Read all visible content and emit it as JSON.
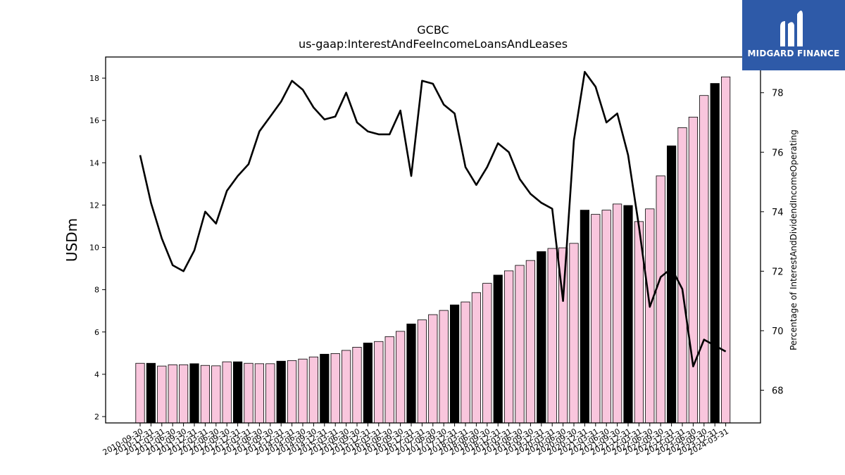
{
  "logo": {
    "text": "MIDGARD FINANCE"
  },
  "chart_data": {
    "type": "bar",
    "title": "GCBC",
    "subtitle": "us-gaap:InterestAndFeeIncomeLoansAndLeases",
    "ylabel": "USDm",
    "y2label": "Percentage of InterestAndDividendIncomeOperating",
    "ylim": [
      1.7,
      19.0
    ],
    "y2lim": [
      66.9,
      79.2
    ],
    "yticks": [
      2,
      4,
      6,
      8,
      10,
      12,
      14,
      16,
      18
    ],
    "y2ticks": [
      68,
      70,
      72,
      74,
      76,
      78
    ],
    "colors": {
      "q4_bar": "#000000",
      "other_bar": "#f9c6dd",
      "line": "#000000",
      "logo_bg": "#2e5aa8"
    },
    "categories": [
      "2010-09-30",
      "2010-12-31",
      "2011-03-31",
      "2011-06-30",
      "2011-09-30",
      "2011-12-31",
      "2012-03-31",
      "2012-06-30",
      "2012-09-30",
      "2012-12-31",
      "2013-03-31",
      "2013-06-30",
      "2013-09-30",
      "2013-12-31",
      "2014-03-31",
      "2014-06-30",
      "2014-09-30",
      "2014-12-31",
      "2015-03-31",
      "2015-06-30",
      "2015-09-30",
      "2015-12-31",
      "2016-03-31",
      "2016-06-30",
      "2016-09-30",
      "2016-12-31",
      "2017-03-31",
      "2017-06-30",
      "2017-09-30",
      "2017-12-31",
      "2018-03-31",
      "2018-06-30",
      "2018-09-30",
      "2018-12-31",
      "2019-03-31",
      "2019-06-30",
      "2019-09-30",
      "2019-12-31",
      "2020-03-31",
      "2020-06-30",
      "2020-09-30",
      "2020-12-31",
      "2021-03-31",
      "2021-06-30",
      "2021-09-30",
      "2021-12-31",
      "2022-03-31",
      "2022-06-30",
      "2022-09-30",
      "2022-12-31",
      "2023-03-31",
      "2023-06-30",
      "2023-09-30",
      "2023-12-31",
      "2024-03-31"
    ],
    "xticklabels": [
      "2010-09-30",
      "2010-12-31",
      "2011-03-31",
      "2011-06-30",
      "2011-09-30",
      "2011-12-31",
      "2012-03-31",
      "2012-06-30",
      "2012-09-30",
      "2012-12-31",
      "2013-03-31",
      "2013-06-30",
      "2013-09-30",
      "2013-12-31",
      "2014-03-31",
      "2014-06-30",
      "2014-09-30",
      "2014-12-31",
      "2015-03-31",
      "2015-06-30",
      "2015-09-30",
      "2015-12-31",
      "2016-03-31",
      "2016-06-30",
      "2016-09-30",
      "2016-12-31",
      "2017-03-31",
      "2017-06-30",
      "2017-09-30",
      "2017-12-31",
      "2018-03-31",
      "2018-06-30",
      "2018-09-30",
      "2018-12-31",
      "2019-03-31",
      "2019-06-30",
      "2019-09-30",
      "2019-12-31",
      "2020-03-31",
      "2020-06-30",
      "2020-09-30",
      "2020-12-31",
      "2021-03-31",
      "2021-06-30",
      "2021-09-30",
      "2021-12-31",
      "2022-03-31",
      "2022-06-30",
      "2022-09-30",
      "2022-12-31",
      "2023-03-31",
      "2023-06-30",
      "2023-09-30",
      "2023-12-31",
      "2024-03-31"
    ],
    "series": [
      {
        "type": "bar",
        "values": [
          4.52,
          4.52,
          4.39,
          4.45,
          4.45,
          4.5,
          4.42,
          4.4,
          4.59,
          4.59,
          4.52,
          4.5,
          4.5,
          4.62,
          4.65,
          4.72,
          4.82,
          4.95,
          4.98,
          5.13,
          5.28,
          5.48,
          5.55,
          5.78,
          6.03,
          6.38,
          6.57,
          6.82,
          7.02,
          7.28,
          7.42,
          7.86,
          8.3,
          8.69,
          8.89,
          9.15,
          9.38,
          9.8,
          9.95,
          9.98,
          10.19,
          11.76,
          11.56,
          11.76,
          12.05,
          11.98,
          11.22,
          11.82,
          13.38,
          14.8,
          15.66,
          16.16,
          17.18,
          17.75,
          18.06
        ],
        "q4_flags": [
          0,
          1,
          0,
          0,
          0,
          1,
          0,
          0,
          0,
          1,
          0,
          0,
          0,
          1,
          0,
          0,
          0,
          1,
          0,
          0,
          0,
          1,
          0,
          0,
          0,
          1,
          0,
          0,
          0,
          1,
          0,
          0,
          0,
          1,
          0,
          0,
          0,
          1,
          0,
          0,
          0,
          1,
          0,
          0,
          0,
          1,
          0,
          0,
          0,
          1,
          0,
          0,
          0,
          1,
          0
        ]
      },
      {
        "type": "line",
        "axis": "right",
        "values": [
          75.9,
          74.3,
          73.1,
          72.2,
          72.0,
          72.7,
          74.0,
          73.6,
          74.7,
          75.2,
          75.6,
          76.7,
          77.2,
          77.7,
          78.4,
          78.1,
          77.5,
          77.1,
          77.2,
          78.0,
          77.0,
          76.7,
          76.6,
          76.6,
          77.4,
          75.2,
          78.4,
          78.3,
          77.6,
          77.3,
          75.5,
          74.9,
          75.5,
          76.3,
          76.0,
          75.1,
          74.6,
          74.3,
          74.1,
          71.0,
          76.4,
          78.7,
          78.2,
          77.0,
          77.3,
          75.9,
          73.5,
          70.8,
          71.8,
          72.1,
          71.4,
          68.8,
          69.7,
          69.5,
          69.3
        ]
      }
    ]
  }
}
